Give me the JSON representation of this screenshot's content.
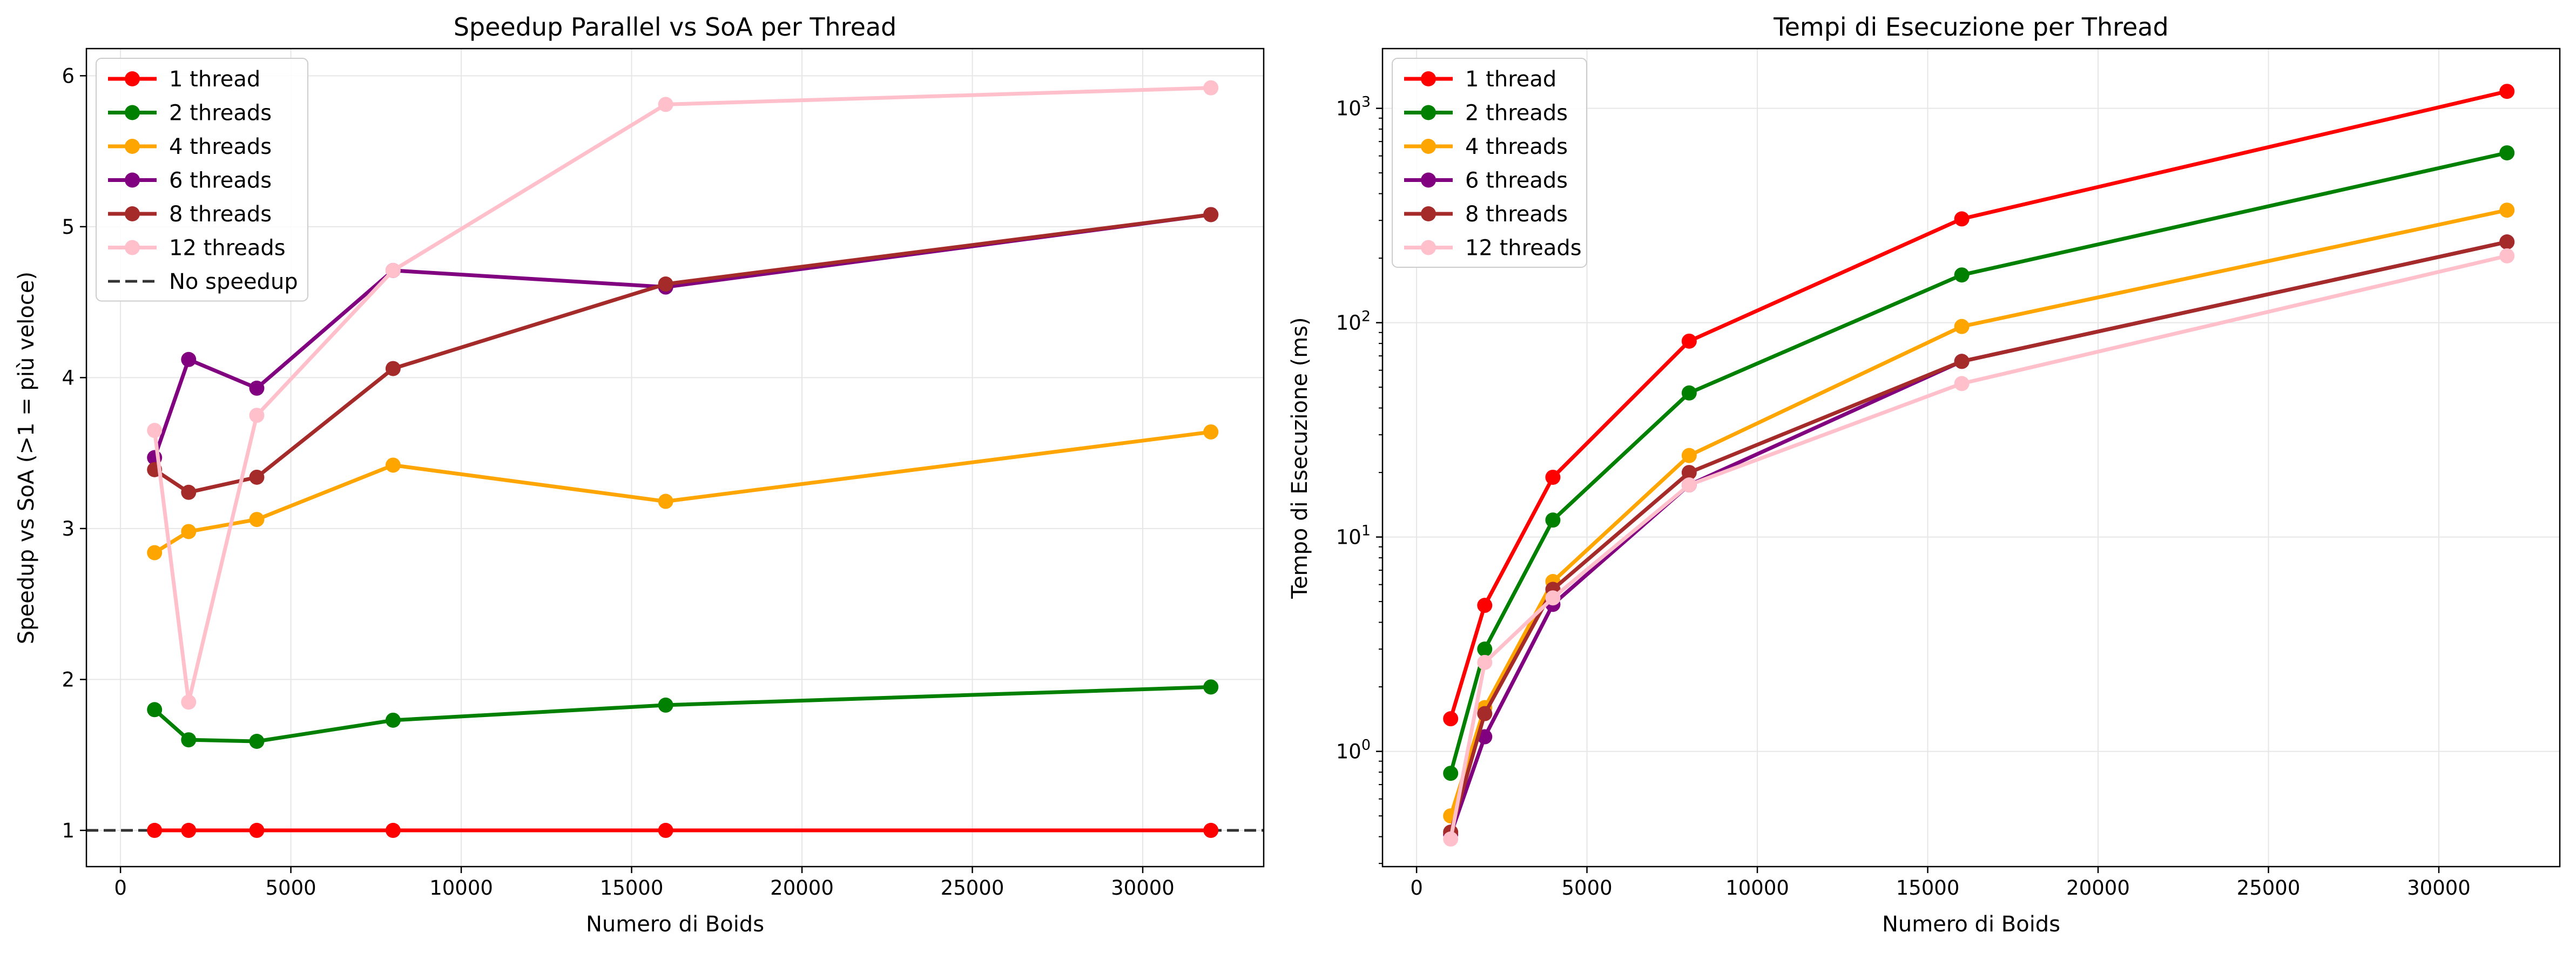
{
  "chart_data": [
    {
      "type": "line",
      "title": "Speedup Parallel vs SoA per Thread",
      "xlabel": "Numero di Boids",
      "ylabel": "Speedup vs SoA (>1 = più veloce)",
      "xlim": [
        -1000,
        33550
      ],
      "ylim": [
        0.76,
        6.18
      ],
      "yscale": "linear",
      "x_ticks": [
        0,
        5000,
        10000,
        15000,
        20000,
        25000,
        30000
      ],
      "y_ticks": [
        1,
        2,
        3,
        4,
        5,
        6
      ],
      "grid": true,
      "legend_position": "upper left",
      "x": [
        1000,
        2000,
        4000,
        8000,
        16000,
        32000
      ],
      "series": [
        {
          "name": "1 thread",
          "color": "#ff0000",
          "values": [
            1.0,
            1.0,
            1.0,
            1.0,
            1.0,
            1.0
          ]
        },
        {
          "name": "2 threads",
          "color": "#008000",
          "values": [
            1.8,
            1.6,
            1.59,
            1.73,
            1.83,
            1.95
          ]
        },
        {
          "name": "4 threads",
          "color": "#ffa500",
          "values": [
            2.84,
            2.98,
            3.06,
            3.42,
            3.18,
            3.64
          ]
        },
        {
          "name": "6 threads",
          "color": "#800080",
          "values": [
            3.47,
            4.12,
            3.93,
            4.71,
            4.6,
            5.08
          ]
        },
        {
          "name": "8 threads",
          "color": "#a52a2a",
          "values": [
            3.39,
            3.24,
            3.34,
            4.06,
            4.62,
            5.08
          ]
        },
        {
          "name": "12 threads",
          "color": "#ffc0cb",
          "values": [
            3.65,
            1.85,
            3.75,
            4.71,
            5.81,
            5.92
          ]
        }
      ],
      "reference_line": {
        "name": "No speedup",
        "y": 1,
        "color": "#333333",
        "style": "dashed"
      }
    },
    {
      "type": "line",
      "title": "Tempi di Esecuzione per Thread",
      "xlabel": "Numero di Boids",
      "ylabel": "Tempo di Esecuzione (ms)",
      "xlim": [
        -1000,
        33550
      ],
      "ylim": [
        0.29,
        1900
      ],
      "yscale": "log",
      "x_ticks": [
        0,
        5000,
        10000,
        15000,
        20000,
        25000,
        30000
      ],
      "y_ticks": [
        1,
        10,
        100,
        1000
      ],
      "grid": true,
      "legend_position": "upper left",
      "x": [
        1000,
        2000,
        4000,
        8000,
        16000,
        32000
      ],
      "series": [
        {
          "name": "1 thread",
          "color": "#ff0000",
          "values": [
            1.42,
            4.8,
            19,
            82,
            305,
            1200
          ]
        },
        {
          "name": "2 threads",
          "color": "#008000",
          "values": [
            0.79,
            3.0,
            12,
            47,
            167,
            620
          ]
        },
        {
          "name": "4 threads",
          "color": "#ffa500",
          "values": [
            0.5,
            1.6,
            6.2,
            24,
            96,
            335
          ]
        },
        {
          "name": "6 threads",
          "color": "#800080",
          "values": [
            0.41,
            1.17,
            4.85,
            17.5,
            66,
            238
          ]
        },
        {
          "name": "8 threads",
          "color": "#a52a2a",
          "values": [
            0.42,
            1.5,
            5.7,
            20,
            66,
            238
          ]
        },
        {
          "name": "12 threads",
          "color": "#ffc0cb",
          "values": [
            0.39,
            2.6,
            5.2,
            17.5,
            52,
            205
          ]
        }
      ]
    }
  ]
}
